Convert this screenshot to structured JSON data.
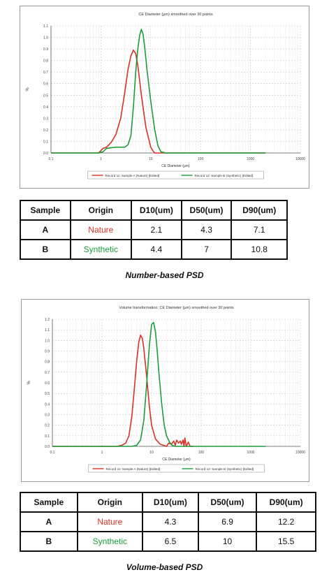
{
  "chart_data": [
    {
      "type": "line",
      "title": "CE Diameter (µm) smoothed over 30 points",
      "xlabel": "CE Diameter (µm)",
      "ylabel": "%",
      "x_scale": "log",
      "xlim": [
        0.1,
        10000
      ],
      "ylim": [
        0,
        1.1
      ],
      "x_ticks": [
        "0.1",
        "1",
        "10",
        "100",
        "1000",
        "10000"
      ],
      "y_ticks": [
        "0.0",
        "0.1",
        "0.2",
        "0.3",
        "0.4",
        "0.5",
        "0.6",
        "0.7",
        "0.8",
        "0.9",
        "1.0",
        "1.1"
      ],
      "grid": true,
      "legend_position": "bottom",
      "series": [
        {
          "name": "Record 11: Sample A (Nature) [Edited]",
          "color": "#d93025",
          "x": [
            0.1,
            0.9,
            1.0,
            1.1,
            1.3,
            1.6,
            2.0,
            2.5,
            3.0,
            3.5,
            4.0,
            4.5,
            5.0,
            5.5,
            6.5,
            8.0,
            10.0,
            11.0,
            12.0,
            15.0,
            100,
            1000,
            2000
          ],
          "y": [
            0.0,
            0.0,
            0.02,
            0.04,
            0.05,
            0.09,
            0.16,
            0.3,
            0.52,
            0.72,
            0.84,
            0.89,
            0.86,
            0.76,
            0.5,
            0.22,
            0.05,
            0.02,
            0.0,
            0.0,
            0.0,
            0.0,
            0.0
          ]
        },
        {
          "name": "Record 12: Sample B (Synthetic) [Edited]",
          "color": "#1a9e3a",
          "x": [
            0.1,
            0.9,
            1.1,
            1.3,
            2.0,
            3.0,
            3.5,
            4.0,
            4.5,
            5.0,
            5.5,
            6.0,
            6.5,
            7.0,
            7.5,
            8.5,
            10.0,
            12.0,
            14.0,
            16.0,
            20.0,
            100,
            1000,
            2000
          ],
          "y": [
            0.0,
            0.0,
            0.01,
            0.04,
            0.05,
            0.05,
            0.07,
            0.15,
            0.4,
            0.7,
            0.9,
            1.02,
            1.07,
            1.03,
            0.93,
            0.7,
            0.45,
            0.2,
            0.06,
            0.01,
            0.0,
            0.0,
            0.0,
            0.0
          ]
        }
      ]
    },
    {
      "type": "line",
      "title": "Volume transformation: CE Diameter (µm) smoothed over 30 points",
      "xlabel": "CE Diameter (µm)",
      "ylabel": "%",
      "x_scale": "log",
      "xlim": [
        0.1,
        10000
      ],
      "ylim": [
        0,
        1.2
      ],
      "x_ticks": [
        "0.1",
        "1",
        "10",
        "100",
        "1000",
        "10000"
      ],
      "y_ticks": [
        "0.0",
        "0.1",
        "0.2",
        "0.3",
        "0.4",
        "0.5",
        "0.6",
        "0.7",
        "0.8",
        "0.9",
        "1.0",
        "1.1",
        "1.2"
      ],
      "grid": true,
      "legend_position": "bottom",
      "series": [
        {
          "name": "Record 11: Sample A (Nature) [Edited]",
          "color": "#d93025",
          "x": [
            0.1,
            2.0,
            2.5,
            3.0,
            3.5,
            4.0,
            4.5,
            5.0,
            5.5,
            6.0,
            6.5,
            7.0,
            8.0,
            9.0,
            10.0,
            12.0,
            15.0,
            20.0,
            22.0,
            25.0,
            28.0,
            30.0,
            32.0,
            35.0,
            38.0,
            40.0,
            43.0,
            45.0,
            47.0,
            50.0,
            55.0,
            60.0,
            70.0
          ],
          "y": [
            0.0,
            0.0,
            0.01,
            0.03,
            0.1,
            0.28,
            0.55,
            0.8,
            0.98,
            1.05,
            1.02,
            0.92,
            0.65,
            0.38,
            0.2,
            0.07,
            0.02,
            0.0,
            0.03,
            0.02,
            0.05,
            0.01,
            0.06,
            0.03,
            0.05,
            0.02,
            0.06,
            0.0,
            0.08,
            0.0,
            0.04,
            0.0,
            0.0
          ]
        },
        {
          "name": "Record 12: Sample B (Synthetic) [Edited]",
          "color": "#1a9e3a",
          "x": [
            0.1,
            4.0,
            5.0,
            6.0,
            7.0,
            8.0,
            9.0,
            10.0,
            11.0,
            12.0,
            13.0,
            14.0,
            16.0,
            18.0,
            20.0,
            23.0,
            26.0,
            30.0,
            35.0,
            100,
            1000,
            2000
          ],
          "y": [
            0.0,
            0.0,
            0.01,
            0.06,
            0.25,
            0.6,
            0.95,
            1.15,
            1.17,
            1.08,
            0.9,
            0.7,
            0.4,
            0.2,
            0.1,
            0.04,
            0.01,
            0.0,
            0.0,
            0.0,
            0.0,
            0.0
          ]
        }
      ]
    }
  ],
  "tables": [
    {
      "headers": [
        "Sample",
        "Origin",
        "D10(um)",
        "D50(um)",
        "D90(um)"
      ],
      "rows": [
        {
          "sample": "A",
          "origin": "Nature",
          "d10": "2.1",
          "d50": "4.3",
          "d90": "7.1"
        },
        {
          "sample": "B",
          "origin": "Synthetic",
          "d10": "4.4",
          "d50": "7",
          "d90": "10.8"
        }
      ],
      "caption": "Number-based PSD"
    },
    {
      "headers": [
        "Sample",
        "Origin",
        "D10(um)",
        "D50(um)",
        "D90(um)"
      ],
      "rows": [
        {
          "sample": "A",
          "origin": "Nature",
          "d10": "4.3",
          "d50": "6.9",
          "d90": "12.2"
        },
        {
          "sample": "B",
          "origin": "Synthetic",
          "d10": "6.5",
          "d50": "10",
          "d90": "15.5"
        }
      ],
      "caption": "Volume-based PSD"
    }
  ],
  "colors": {
    "nature": "#d93025",
    "synthetic": "#1a9e3a",
    "grid": "#c8c8c8",
    "axis": "#555555"
  }
}
